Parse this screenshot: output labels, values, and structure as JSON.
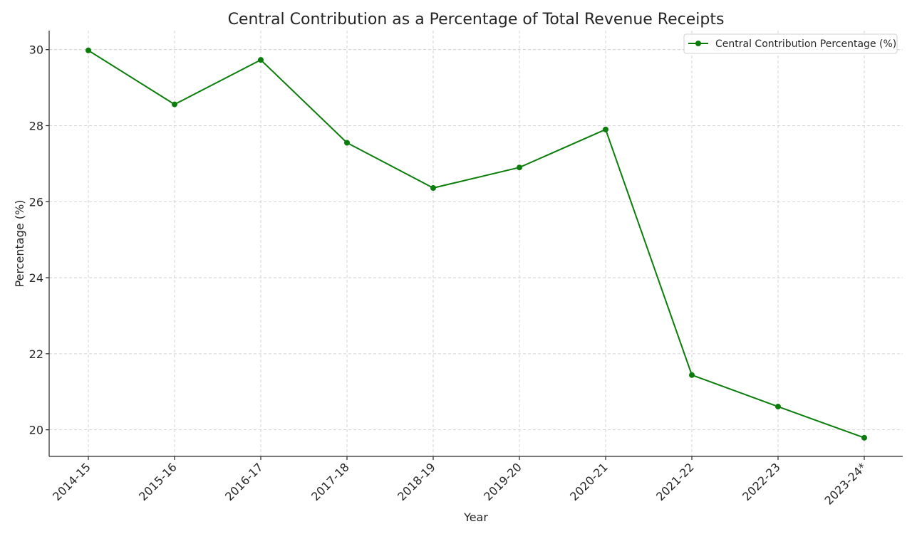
{
  "chart_data": {
    "type": "line",
    "title": "Central Contribution as a Percentage of Total Revenue Receipts",
    "xlabel": "Year",
    "ylabel": "Percentage (%)",
    "categories": [
      "2014-15",
      "2015-16",
      "2016-17",
      "2017-18",
      "2018-19",
      "2019-20",
      "2020-21",
      "2021-22",
      "2022-23",
      "2023-24*"
    ],
    "series": [
      {
        "name": "Central Contribution Percentage (%)",
        "values": [
          29.98,
          28.56,
          29.73,
          27.55,
          26.36,
          26.9,
          27.9,
          21.44,
          20.61,
          19.79
        ],
        "color": "#0a7d0a",
        "marker": "circle"
      }
    ],
    "ylim": [
      19.3,
      30.5
    ],
    "yticks": [
      20,
      22,
      24,
      26,
      28,
      30
    ],
    "grid": true,
    "legend_position": "top-right"
  }
}
